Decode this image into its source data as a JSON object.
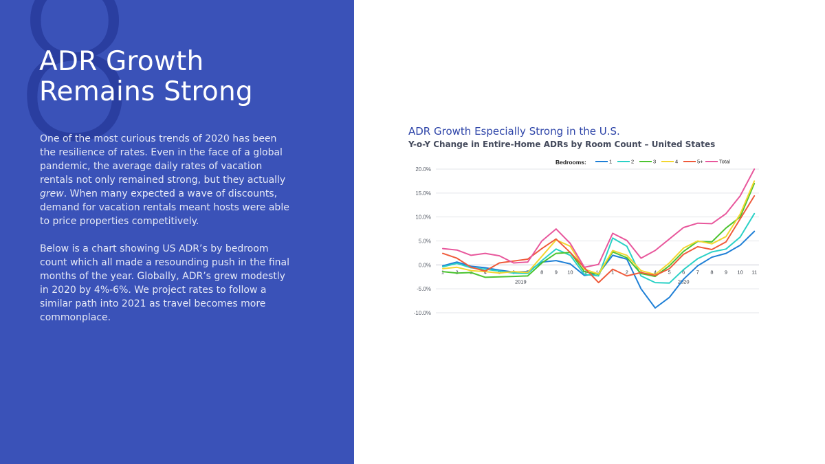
{
  "slide": {
    "number": "8",
    "title_line1": "ADR Growth",
    "title_line2": "Remains Strong",
    "para1_before": "One of the most curious trends of 2020 has been the resilience of rates. Even in the face of a global pandemic, the average daily rates of vacation rentals not only remained strong, but they actually ",
    "para1_emphasis": "grew",
    "para1_after": ". When many expected a wave of discounts, demand for vacation rentals meant hosts were able to price properties competitively.",
    "para2": "Below is a chart showing US ADR’s by bedroom count which all made a resounding push in the final months of the year. Globally, ADR’s grew modestly in 2020 by 4%-6%. We project rates to follow a similar path into 2021 as travel becomes more commonplace."
  },
  "chart_data": {
    "type": "line",
    "title": "ADR Growth Especially Strong in the U.S.",
    "subtitle": "Y-o-Y Change in Entire-Home ADRs by Room Count – United States",
    "legend_title": "Bedrooms:",
    "legend_position": "top-right",
    "categories": [
      "1",
      "2",
      "3",
      "4",
      "5",
      "6",
      "7",
      "8",
      "9",
      "10",
      "11",
      "12",
      "1",
      "2",
      "3",
      "4",
      "5",
      "6",
      "7",
      "8",
      "9",
      "10",
      "11"
    ],
    "year_labels": [
      {
        "label": "2019",
        "start_index": 0,
        "end_index": 11
      },
      {
        "label": "2020",
        "start_index": 12,
        "end_index": 22
      }
    ],
    "y_ticks": [
      20,
      15,
      10,
      5,
      0,
      -5,
      -10
    ],
    "y_tick_labels": [
      "20.0%",
      "15.0%",
      "10.0%",
      "5.0%",
      "0.0%",
      "-5.0%",
      "-10.0%"
    ],
    "ylim": [
      -10,
      20
    ],
    "grid": true,
    "series": [
      {
        "name": "1",
        "color": "#1e7fd6",
        "values": [
          -0.2,
          0.6,
          -0.3,
          -0.6,
          -1.1,
          -1.5,
          -1.4,
          0.6,
          0.9,
          0.2,
          -2.2,
          -1.8,
          2.0,
          1.2,
          -5.0,
          -9.0,
          -6.8,
          -3.0,
          -0.2,
          1.6,
          2.4,
          4.1,
          7.0
        ]
      },
      {
        "name": "2",
        "color": "#2ad1c6",
        "values": [
          -0.4,
          0.3,
          -0.6,
          -0.9,
          -1.3,
          -1.7,
          -1.8,
          0.9,
          3.3,
          2.0,
          -2.0,
          -2.3,
          5.6,
          3.9,
          -2.3,
          -3.7,
          -3.8,
          -1.0,
          1.3,
          2.7,
          3.3,
          5.8,
          10.7
        ]
      },
      {
        "name": "3",
        "color": "#4cc431",
        "values": [
          -1.4,
          -1.7,
          -1.6,
          -2.6,
          -2.5,
          -2.4,
          -2.3,
          0.4,
          2.4,
          2.6,
          -1.4,
          -2.0,
          2.7,
          1.5,
          -1.8,
          -2.4,
          -0.2,
          2.8,
          4.9,
          4.8,
          7.7,
          10.0,
          17.0
        ]
      },
      {
        "name": "4",
        "color": "#f3d630",
        "values": [
          -0.8,
          -0.5,
          -1.2,
          -1.4,
          -1.7,
          -1.4,
          -1.6,
          1.8,
          5.2,
          3.9,
          -0.9,
          -1.9,
          3.0,
          2.0,
          -1.2,
          -2.0,
          0.4,
          3.5,
          5.0,
          4.4,
          5.9,
          10.6,
          17.5
        ]
      },
      {
        "name": "5+",
        "color": "#ef5a3a",
        "values": [
          2.4,
          1.4,
          -0.5,
          -1.3,
          0.4,
          0.8,
          1.2,
          3.4,
          5.4,
          2.6,
          -0.6,
          -3.7,
          -0.9,
          -2.3,
          -1.6,
          -2.2,
          -0.8,
          2.2,
          3.8,
          3.2,
          4.8,
          9.6,
          14.4
        ]
      },
      {
        "name": "Total",
        "color": "#e8579c",
        "values": [
          3.4,
          3.1,
          2.0,
          2.4,
          1.9,
          0.4,
          0.6,
          5.0,
          7.5,
          4.5,
          -0.5,
          0.1,
          6.6,
          5.1,
          1.4,
          3.0,
          5.4,
          7.8,
          8.7,
          8.6,
          10.7,
          14.4,
          20.0
        ]
      }
    ]
  }
}
